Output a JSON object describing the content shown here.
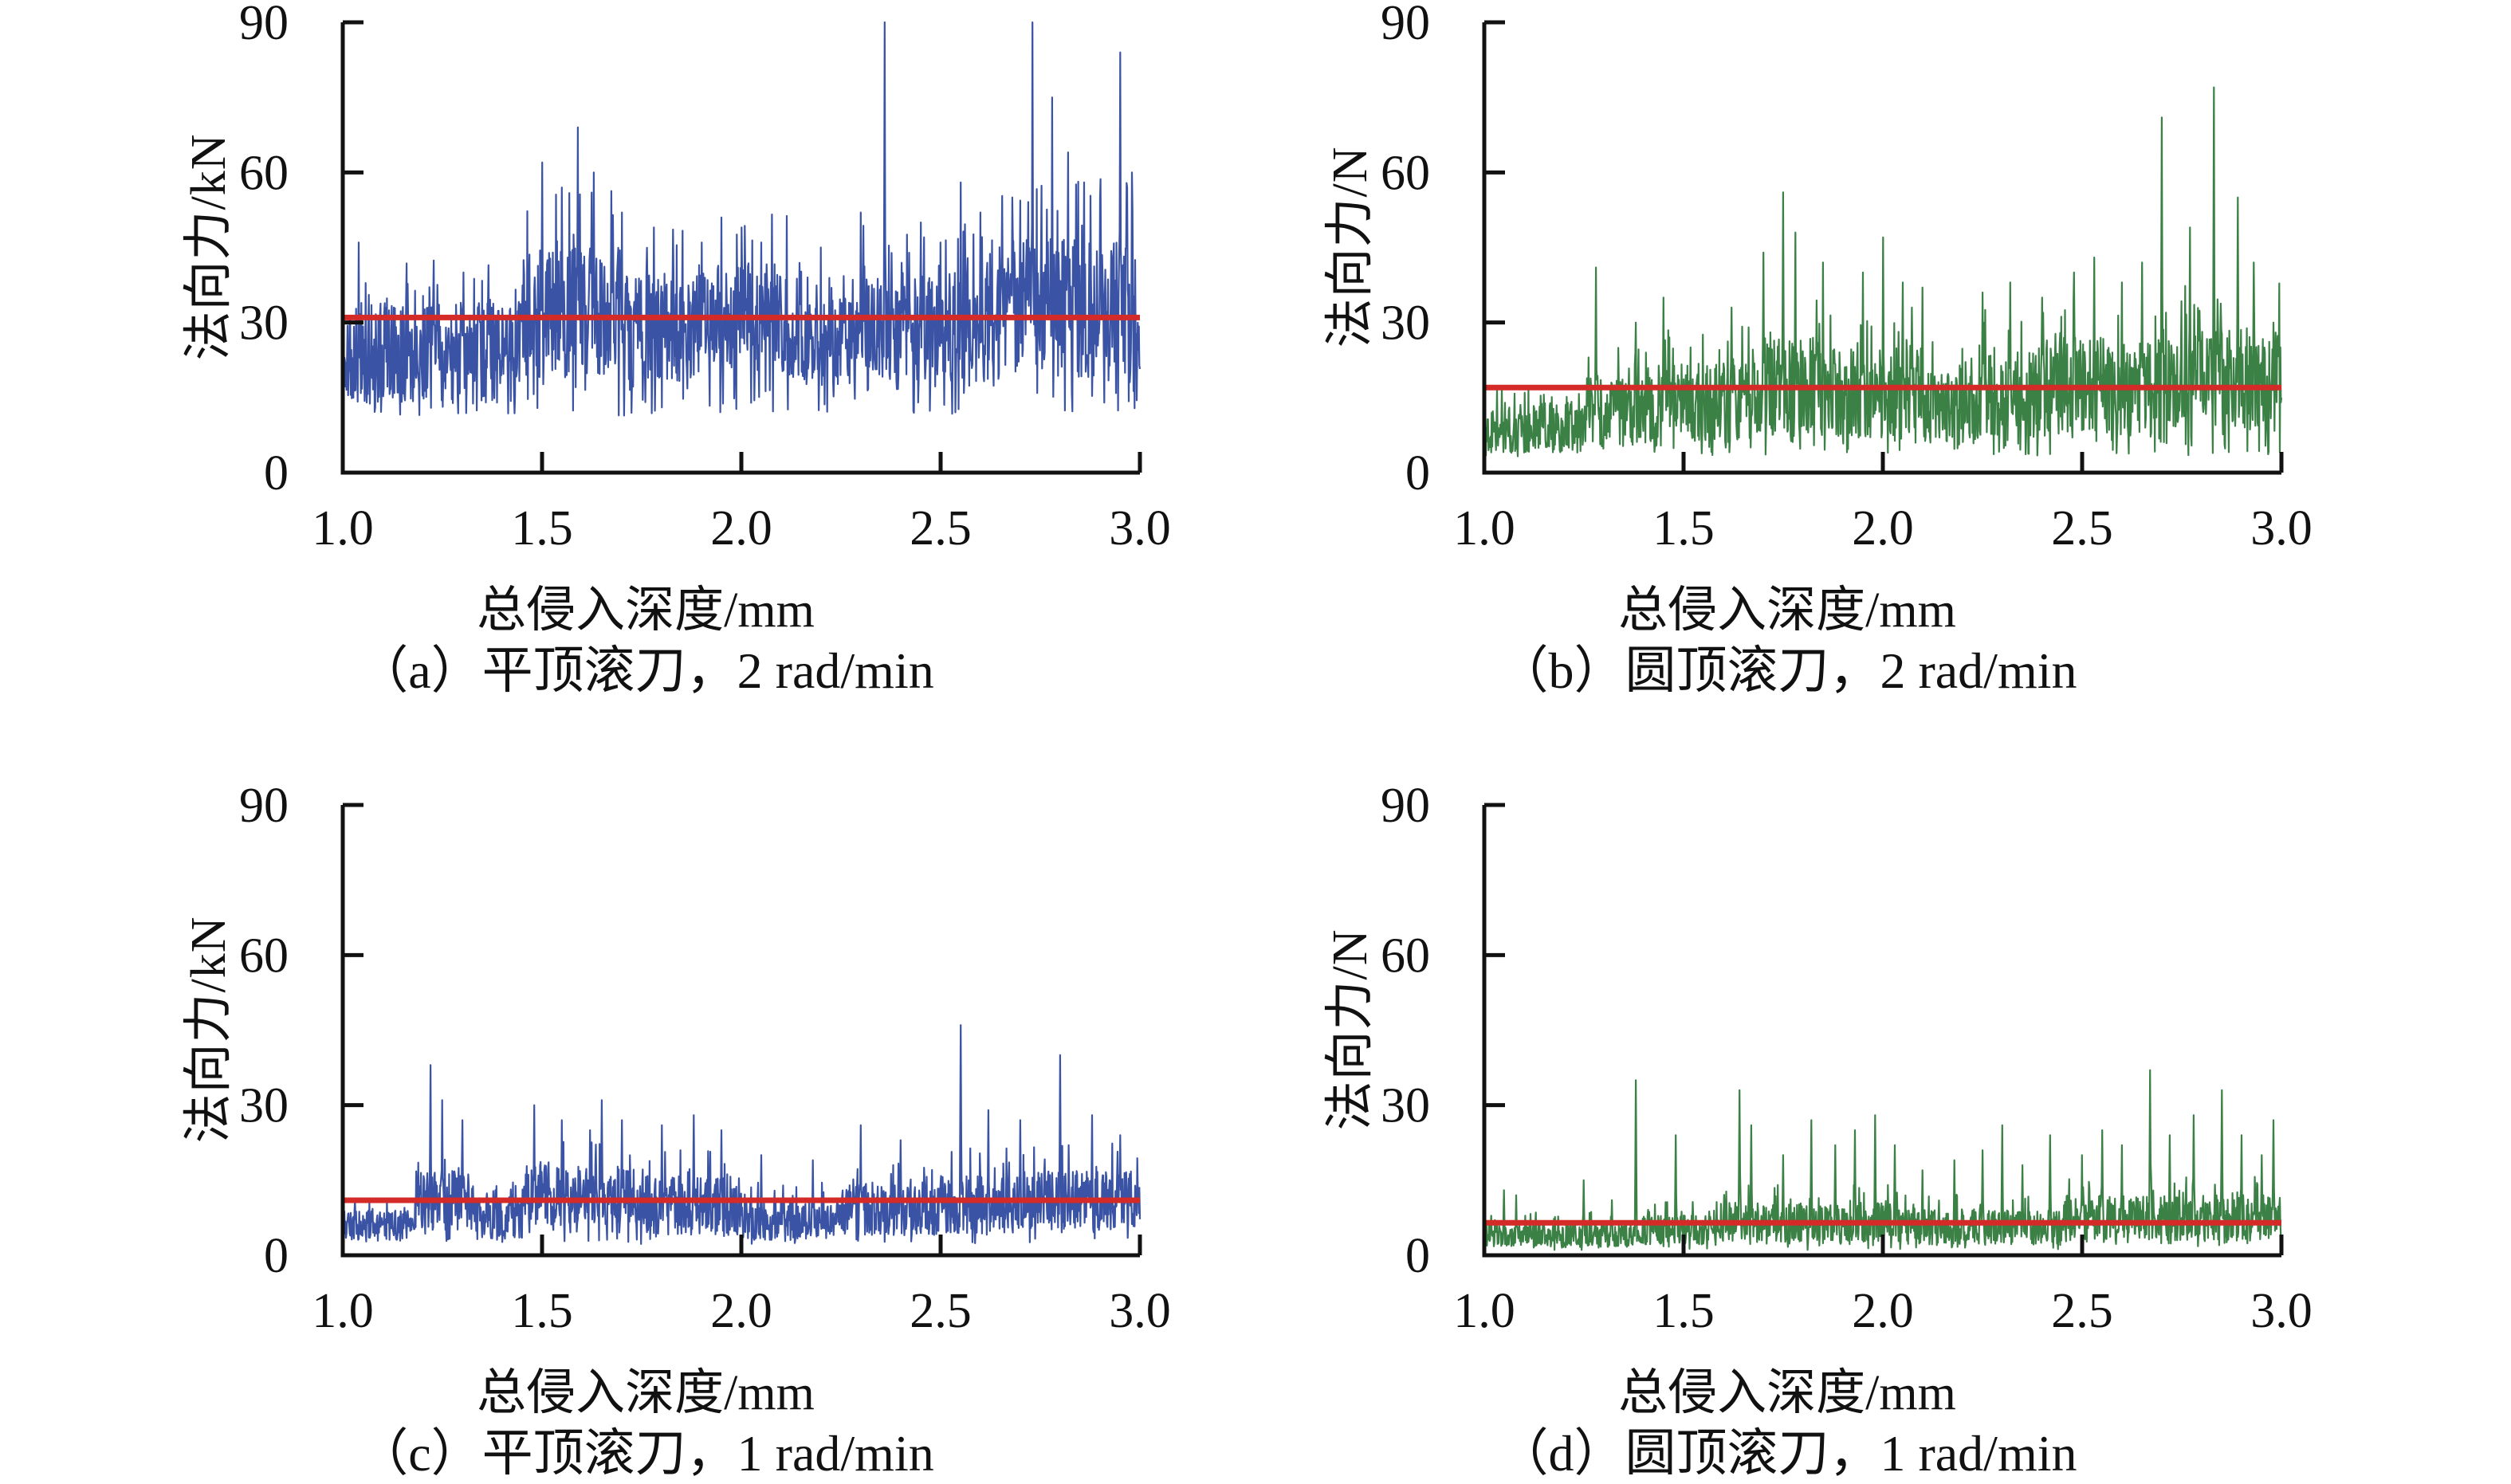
{
  "figure": {
    "background": "#ffffff",
    "axis_color": "#111111",
    "n_charts": 4
  },
  "chart_data": [
    {
      "id": "a",
      "type": "line",
      "caption": "（a）平顶滚刀，2 rad/min",
      "xlabel": "总侵入深度/mm",
      "ylabel": "法向力/kN",
      "x_range": [
        1.0,
        3.0
      ],
      "y_range": [
        0,
        90
      ],
      "x_ticks": [
        1.0,
        1.5,
        2.0,
        2.5,
        3.0
      ],
      "x_tick_labels": [
        "1.0",
        "1.5",
        "2.0",
        "2.5",
        "3.0"
      ],
      "y_ticks": [
        0,
        30,
        60,
        90
      ],
      "y_tick_labels": [
        "0",
        "30",
        "60",
        "90"
      ],
      "grid": false,
      "legend": null,
      "line_color": "#3A53A4",
      "mean_line": {
        "value": 31,
        "color": "#D42A28"
      },
      "signal": {
        "n_points": 1500,
        "seed": 11,
        "clip_min": 11,
        "segments": [
          [
            1.0,
            1.45,
            24,
            10
          ],
          [
            1.45,
            1.7,
            32,
            13
          ],
          [
            1.7,
            1.9,
            29,
            11
          ],
          [
            1.9,
            2.12,
            31,
            11
          ],
          [
            2.12,
            2.3,
            26,
            9
          ],
          [
            2.3,
            2.62,
            29,
            11
          ],
          [
            2.62,
            3.0,
            33,
            14
          ]
        ],
        "peaks": [
          [
            1.04,
            46
          ],
          [
            1.5,
            62
          ],
          [
            1.55,
            57
          ],
          [
            1.59,
            69
          ],
          [
            1.63,
            60
          ],
          [
            1.7,
            52
          ],
          [
            1.78,
            49
          ],
          [
            1.9,
            46
          ],
          [
            1.95,
            51
          ],
          [
            2.0,
            49
          ],
          [
            2.05,
            46
          ],
          [
            2.2,
            45
          ],
          [
            2.3,
            52
          ],
          [
            2.36,
            90
          ],
          [
            2.45,
            50
          ],
          [
            2.5,
            46
          ],
          [
            2.55,
            58
          ],
          [
            2.6,
            52
          ],
          [
            2.68,
            55
          ],
          [
            2.73,
            90
          ],
          [
            2.78,
            75
          ],
          [
            2.82,
            64
          ],
          [
            2.86,
            58
          ],
          [
            2.9,
            55
          ],
          [
            2.95,
            84
          ],
          [
            2.98,
            60
          ]
        ]
      }
    },
    {
      "id": "b",
      "type": "line",
      "caption": "（b）圆顶滚刀，2 rad/min",
      "xlabel": "总侵入深度/mm",
      "ylabel": "法向力/N",
      "x_range": [
        1.0,
        3.0
      ],
      "y_range": [
        0,
        90
      ],
      "x_ticks": [
        1.0,
        1.5,
        2.0,
        2.5,
        3.0
      ],
      "x_tick_labels": [
        "1.0",
        "1.5",
        "2.0",
        "2.5",
        "3.0"
      ],
      "y_ticks": [
        0,
        30,
        60,
        90
      ],
      "y_tick_labels": [
        "0",
        "30",
        "60",
        "90"
      ],
      "grid": false,
      "legend": null,
      "line_color": "#3B8045",
      "mean_line": {
        "value": 17,
        "color": "#D42A28"
      },
      "signal": {
        "n_points": 1500,
        "seed": 22,
        "clip_min": 3,
        "segments": [
          [
            1.0,
            1.25,
            9,
            5
          ],
          [
            1.25,
            1.45,
            12,
            7
          ],
          [
            1.45,
            1.7,
            14,
            8
          ],
          [
            1.7,
            1.85,
            17,
            10
          ],
          [
            1.85,
            2.1,
            16,
            9
          ],
          [
            2.1,
            2.25,
            13,
            7
          ],
          [
            2.25,
            2.45,
            16,
            9
          ],
          [
            2.45,
            2.7,
            17,
            10
          ],
          [
            2.7,
            3.0,
            19,
            10
          ]
        ],
        "peaks": [
          [
            1.28,
            41
          ],
          [
            1.38,
            30
          ],
          [
            1.45,
            35
          ],
          [
            1.62,
            33
          ],
          [
            1.7,
            44
          ],
          [
            1.75,
            56
          ],
          [
            1.78,
            48
          ],
          [
            1.85,
            42
          ],
          [
            1.95,
            40
          ],
          [
            2.0,
            47
          ],
          [
            2.05,
            38
          ],
          [
            2.1,
            37
          ],
          [
            2.25,
            36
          ],
          [
            2.32,
            38
          ],
          [
            2.4,
            35
          ],
          [
            2.48,
            40
          ],
          [
            2.53,
            43
          ],
          [
            2.6,
            38
          ],
          [
            2.65,
            42
          ],
          [
            2.7,
            71
          ],
          [
            2.77,
            49
          ],
          [
            2.83,
            77
          ],
          [
            2.89,
            55
          ],
          [
            2.93,
            42
          ],
          [
            2.98,
            30
          ]
        ]
      }
    },
    {
      "id": "c",
      "type": "line",
      "caption": "（c）平顶滚刀，1 rad/min",
      "xlabel": "总侵入深度/mm",
      "ylabel": "法向力/kN",
      "x_range": [
        1.0,
        3.0
      ],
      "y_range": [
        0,
        90
      ],
      "x_ticks": [
        1.0,
        1.5,
        2.0,
        2.5,
        3.0
      ],
      "x_tick_labels": [
        "1.0",
        "1.5",
        "2.0",
        "2.5",
        "3.0"
      ],
      "y_ticks": [
        0,
        30,
        60,
        90
      ],
      "y_tick_labels": [
        "0",
        "30",
        "60",
        "90"
      ],
      "grid": false,
      "legend": null,
      "line_color": "#3A53A4",
      "mean_line": {
        "value": 11,
        "color": "#D42A28"
      },
      "signal": {
        "n_points": 1500,
        "seed": 33,
        "clip_min": 2,
        "segments": [
          [
            1.0,
            1.18,
            6,
            3
          ],
          [
            1.18,
            1.32,
            11,
            6
          ],
          [
            1.32,
            1.45,
            7,
            4
          ],
          [
            1.45,
            1.75,
            12,
            6
          ],
          [
            1.75,
            2.0,
            10,
            6
          ],
          [
            2.0,
            2.25,
            7,
            4
          ],
          [
            2.25,
            2.45,
            9,
            5
          ],
          [
            2.45,
            2.7,
            10,
            6
          ],
          [
            2.7,
            3.0,
            11,
            6
          ]
        ],
        "peaks": [
          [
            1.22,
            38
          ],
          [
            1.25,
            31
          ],
          [
            1.3,
            27
          ],
          [
            1.48,
            30
          ],
          [
            1.55,
            27
          ],
          [
            1.62,
            25
          ],
          [
            1.65,
            31
          ],
          [
            1.7,
            27
          ],
          [
            1.8,
            26
          ],
          [
            1.88,
            28
          ],
          [
            1.95,
            25
          ],
          [
            2.05,
            20
          ],
          [
            2.18,
            19
          ],
          [
            2.3,
            26
          ],
          [
            2.4,
            23
          ],
          [
            2.55,
            46
          ],
          [
            2.62,
            29
          ],
          [
            2.7,
            27
          ],
          [
            2.8,
            40
          ],
          [
            2.88,
            28
          ],
          [
            2.95,
            24
          ]
        ]
      }
    },
    {
      "id": "d",
      "type": "line",
      "caption": "（d）圆顶滚刀，1 rad/min",
      "xlabel": "总侵入深度/mm",
      "ylabel": "法向力/N",
      "x_range": [
        1.0,
        3.0
      ],
      "y_range": [
        0,
        90
      ],
      "x_ticks": [
        1.0,
        1.5,
        2.0,
        2.5,
        3.0
      ],
      "x_tick_labels": [
        "1.0",
        "1.5",
        "2.0",
        "2.5",
        "3.0"
      ],
      "y_ticks": [
        0,
        30,
        60,
        90
      ],
      "y_tick_labels": [
        "0",
        "30",
        "60",
        "90"
      ],
      "grid": false,
      "legend": null,
      "line_color": "#3B8045",
      "mean_line": {
        "value": 6.5,
        "color": "#D42A28"
      },
      "signal": {
        "n_points": 1500,
        "seed": 44,
        "clip_min": 1,
        "segments": [
          [
            1.0,
            1.38,
            4,
            2.5
          ],
          [
            1.38,
            1.6,
            5,
            3
          ],
          [
            1.6,
            2.05,
            6.5,
            4
          ],
          [
            2.05,
            2.45,
            5.5,
            3.5
          ],
          [
            2.45,
            3.0,
            7.5,
            4.5
          ]
        ],
        "peaks": [
          [
            1.05,
            13
          ],
          [
            1.08,
            12
          ],
          [
            1.25,
            15
          ],
          [
            1.32,
            11
          ],
          [
            1.38,
            35
          ],
          [
            1.48,
            24
          ],
          [
            1.64,
            33
          ],
          [
            1.67,
            26
          ],
          [
            1.75,
            20
          ],
          [
            1.82,
            27
          ],
          [
            1.88,
            22
          ],
          [
            1.93,
            25
          ],
          [
            1.98,
            28
          ],
          [
            2.03,
            22
          ],
          [
            2.1,
            17
          ],
          [
            2.18,
            19
          ],
          [
            2.25,
            21
          ],
          [
            2.3,
            26
          ],
          [
            2.35,
            18
          ],
          [
            2.42,
            24
          ],
          [
            2.5,
            20
          ],
          [
            2.55,
            25
          ],
          [
            2.6,
            22
          ],
          [
            2.67,
            37
          ],
          [
            2.72,
            24
          ],
          [
            2.78,
            28
          ],
          [
            2.85,
            33
          ],
          [
            2.9,
            24
          ],
          [
            2.95,
            20
          ],
          [
            2.98,
            27
          ]
        ]
      }
    }
  ]
}
